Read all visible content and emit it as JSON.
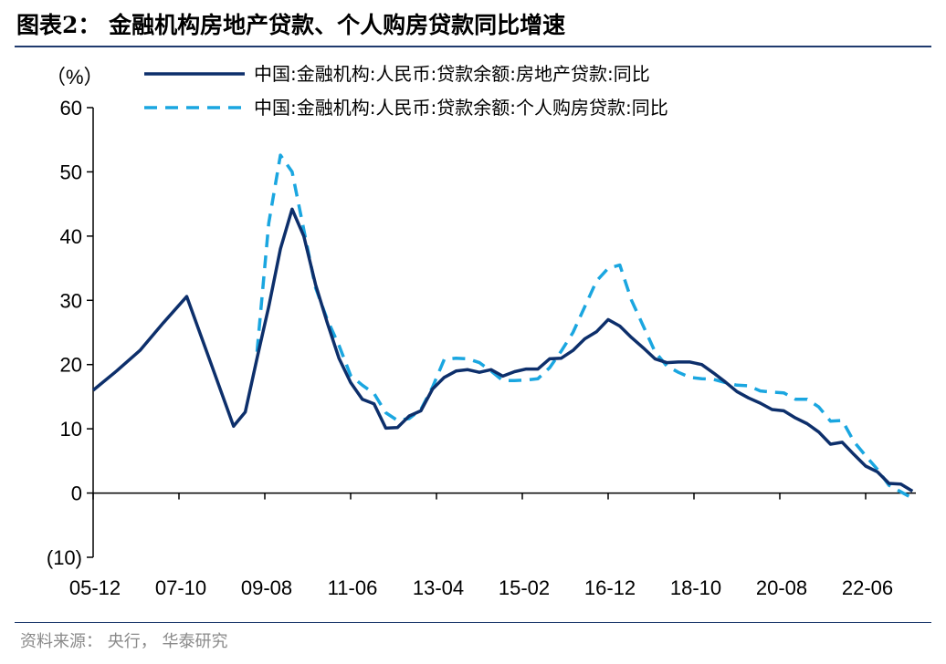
{
  "title": "图表2： 金融机构房地产贷款、个人购房贷款同比增速",
  "source": "资料来源： 央行， 华泰研究",
  "colors": {
    "series1": "#0d2f6b",
    "series2": "#1aa6e0",
    "axis": "#000000",
    "rule": "#1f3b6e"
  },
  "chart_data": {
    "type": "line",
    "unit_label": "（%）",
    "ylim": [
      -10,
      60
    ],
    "y_ticks": [
      -10,
      0,
      10,
      20,
      30,
      40,
      50,
      60
    ],
    "y_tick_labels": [
      "(10)",
      "0",
      "10",
      "20",
      "30",
      "40",
      "50",
      "60"
    ],
    "x_tick_labels": [
      "05-12",
      "07-10",
      "09-08",
      "11-06",
      "13-04",
      "15-02",
      "16-12",
      "18-10",
      "20-08",
      "22-06"
    ],
    "legend_position": "top",
    "grid": false,
    "series": [
      {
        "name": "中国:金融机构:人民币:贷款余额:房地产贷款:同比",
        "style": "solid",
        "points": [
          [
            "2005-12",
            16.0
          ],
          [
            "2006-06",
            19.0
          ],
          [
            "2006-12",
            22.2
          ],
          [
            "2007-06",
            26.5
          ],
          [
            "2007-12",
            30.6
          ],
          [
            "2008-06",
            20.5
          ],
          [
            "2008-12",
            10.4
          ],
          [
            "2009-03",
            12.6
          ],
          [
            "2009-06",
            21.0
          ],
          [
            "2009-09",
            29.0
          ],
          [
            "2009-12",
            38.0
          ],
          [
            "2010-03",
            44.2
          ],
          [
            "2010-06",
            40.0
          ],
          [
            "2010-09",
            32.5
          ],
          [
            "2010-12",
            26.5
          ],
          [
            "2011-03",
            21.0
          ],
          [
            "2011-06",
            17.2
          ],
          [
            "2011-09",
            14.6
          ],
          [
            "2011-12",
            13.9
          ],
          [
            "2012-03",
            10.1
          ],
          [
            "2012-06",
            10.2
          ],
          [
            "2012-09",
            12.0
          ],
          [
            "2012-12",
            12.8
          ],
          [
            "2013-03",
            16.2
          ],
          [
            "2013-06",
            18.0
          ],
          [
            "2013-09",
            19.0
          ],
          [
            "2013-12",
            19.2
          ],
          [
            "2014-03",
            18.8
          ],
          [
            "2014-06",
            19.2
          ],
          [
            "2014-09",
            18.2
          ],
          [
            "2014-12",
            18.9
          ],
          [
            "2015-03",
            19.3
          ],
          [
            "2015-06",
            19.3
          ],
          [
            "2015-09",
            20.9
          ],
          [
            "2015-12",
            21.0
          ],
          [
            "2016-03",
            22.2
          ],
          [
            "2016-06",
            24.0
          ],
          [
            "2016-09",
            25.1
          ],
          [
            "2016-12",
            27.0
          ],
          [
            "2017-03",
            26.0
          ],
          [
            "2017-06",
            24.2
          ],
          [
            "2017-09",
            22.6
          ],
          [
            "2017-12",
            20.9
          ],
          [
            "2018-03",
            20.3
          ],
          [
            "2018-06",
            20.4
          ],
          [
            "2018-09",
            20.4
          ],
          [
            "2018-12",
            20.0
          ],
          [
            "2019-03",
            18.7
          ],
          [
            "2019-06",
            17.3
          ],
          [
            "2019-09",
            15.8
          ],
          [
            "2019-12",
            14.8
          ],
          [
            "2020-03",
            14.0
          ],
          [
            "2020-06",
            13.0
          ],
          [
            "2020-09",
            12.8
          ],
          [
            "2020-12",
            11.7
          ],
          [
            "2021-03",
            10.8
          ],
          [
            "2021-06",
            9.5
          ],
          [
            "2021-09",
            7.6
          ],
          [
            "2021-12",
            7.9
          ],
          [
            "2022-03",
            6.0
          ],
          [
            "2022-06",
            4.2
          ],
          [
            "2022-09",
            3.3
          ],
          [
            "2022-12",
            1.5
          ],
          [
            "2023-03",
            1.4
          ],
          [
            "2023-06",
            0.3
          ]
        ]
      },
      {
        "name": "中国:金融机构:人民币:贷款余额:个人购房贷款:同比",
        "style": "dashed",
        "points": [
          [
            "2009-06",
            22.0
          ],
          [
            "2009-09",
            42.0
          ],
          [
            "2009-12",
            52.6
          ],
          [
            "2010-03",
            50.0
          ],
          [
            "2010-06",
            41.0
          ],
          [
            "2010-09",
            32.0
          ],
          [
            "2010-12",
            27.0
          ],
          [
            "2011-03",
            23.0
          ],
          [
            "2011-06",
            18.3
          ],
          [
            "2011-09",
            16.8
          ],
          [
            "2011-12",
            15.5
          ],
          [
            "2012-03",
            12.5
          ],
          [
            "2012-06",
            11.3
          ],
          [
            "2012-09",
            11.6
          ],
          [
            "2012-12",
            13.0
          ],
          [
            "2013-03",
            16.5
          ],
          [
            "2013-06",
            20.8
          ],
          [
            "2013-09",
            21.0
          ],
          [
            "2013-12",
            20.9
          ],
          [
            "2014-03",
            20.3
          ],
          [
            "2014-06",
            19.0
          ],
          [
            "2014-09",
            17.5
          ],
          [
            "2014-12",
            17.5
          ],
          [
            "2015-03",
            17.6
          ],
          [
            "2015-06",
            17.8
          ],
          [
            "2015-09",
            19.5
          ],
          [
            "2015-12",
            22.1
          ],
          [
            "2016-03",
            25.0
          ],
          [
            "2016-06",
            29.0
          ],
          [
            "2016-09",
            33.0
          ],
          [
            "2016-12",
            35.0
          ],
          [
            "2017-03",
            35.5
          ],
          [
            "2017-06",
            30.0
          ],
          [
            "2017-09",
            26.0
          ],
          [
            "2017-12",
            22.0
          ],
          [
            "2018-03",
            19.8
          ],
          [
            "2018-06",
            18.8
          ],
          [
            "2018-09",
            18.0
          ],
          [
            "2018-12",
            17.8
          ],
          [
            "2019-03",
            17.7
          ],
          [
            "2019-06",
            17.2
          ],
          [
            "2019-09",
            16.8
          ],
          [
            "2019-12",
            16.7
          ],
          [
            "2020-03",
            15.9
          ],
          [
            "2020-06",
            15.7
          ],
          [
            "2020-09",
            15.6
          ],
          [
            "2020-12",
            14.6
          ],
          [
            "2021-03",
            14.6
          ],
          [
            "2021-06",
            13.4
          ],
          [
            "2021-09",
            11.2
          ],
          [
            "2021-12",
            11.3
          ],
          [
            "2022-03",
            8.0
          ],
          [
            "2022-06",
            5.8
          ],
          [
            "2022-09",
            3.7
          ],
          [
            "2022-12",
            1.2
          ],
          [
            "2023-03",
            0.2
          ],
          [
            "2023-06",
            -0.8
          ]
        ]
      }
    ]
  }
}
